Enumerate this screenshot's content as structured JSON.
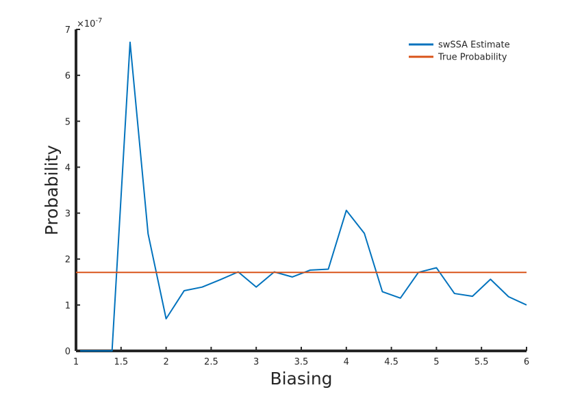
{
  "chart_data": {
    "type": "line",
    "xlabel": "Biasing",
    "ylabel": "Probability",
    "xlim": [
      1,
      6
    ],
    "ylim": [
      0,
      7
    ],
    "y_exponent_label": "×10",
    "y_exponent_power": "-7",
    "x_ticks": [
      1,
      1.5,
      2,
      2.5,
      3,
      3.5,
      4,
      4.5,
      5,
      5.5,
      6
    ],
    "x_tick_labels": [
      "1",
      "1.5",
      "2",
      "2.5",
      "3",
      "3.5",
      "4",
      "4.5",
      "5",
      "5.5",
      "6"
    ],
    "y_ticks": [
      0,
      1,
      2,
      3,
      4,
      5,
      6,
      7
    ],
    "y_tick_labels": [
      "0",
      "1",
      "2",
      "3",
      "4",
      "5",
      "6",
      "7"
    ],
    "legend_position": "top-right",
    "grid": false,
    "series": [
      {
        "name": "swSSA Estimate",
        "color": "#0072BD",
        "x": [
          1,
          1.2,
          1.4,
          1.6,
          1.8,
          2,
          2.2,
          2.4,
          2.6,
          2.8,
          3,
          3.2,
          3.4,
          3.6,
          3.8,
          4,
          4.2,
          4.4,
          4.6,
          4.8,
          5,
          5.2,
          5.4,
          5.6,
          5.8,
          6
        ],
        "y": [
          0,
          0,
          0,
          6.72,
          2.55,
          0.7,
          1.31,
          1.39,
          1.55,
          1.72,
          1.39,
          1.72,
          1.61,
          1.76,
          1.78,
          3.06,
          2.56,
          1.29,
          1.15,
          1.71,
          1.81,
          1.25,
          1.19,
          1.56,
          1.18,
          1.0
        ]
      },
      {
        "name": "True Probability",
        "color": "#D95319",
        "x": [
          1,
          6
        ],
        "y": [
          1.71,
          1.71
        ]
      }
    ]
  }
}
